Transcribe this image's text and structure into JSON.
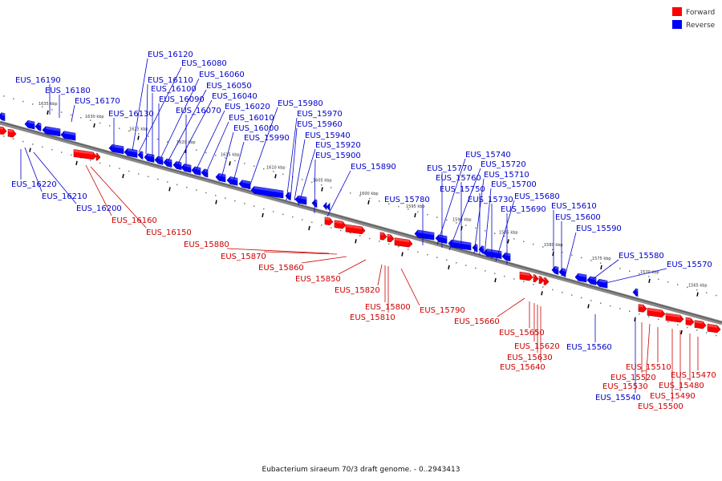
{
  "legend": {
    "forward": {
      "label": "Forward",
      "color": "#ff0000"
    },
    "reverse": {
      "label": "Reverse",
      "color": "#0000ff"
    }
  },
  "caption": "Eubacterium siraeum 70/3 draft genome. - 0..2943413",
  "ticks": {
    "kbp_labels": [
      "1635 kbp",
      "1630 kbp",
      "1625 kbp",
      "1620 kbp",
      "1615 kbp",
      "1610 kbp",
      "1605 kbp",
      "1600 kbp",
      "1595 kbp",
      "1590 kbp",
      "1585 kbp",
      "1580 kbp",
      "1575 kbp",
      "1570 kbp",
      "1565 kbp"
    ]
  },
  "genes": {
    "reverse_upper": [
      "EUS_16190",
      "EUS_16180",
      "EUS_16170",
      "EUS_16130",
      "EUS_16120",
      "EUS_16080",
      "EUS_16110",
      "EUS_16100",
      "EUS_16060",
      "EUS_16090",
      "EUS_16050",
      "EUS_16040",
      "EUS_16070",
      "EUS_16020",
      "EUS_16010",
      "EUS_16000",
      "EUS_15990",
      "EUS_15980",
      "EUS_15970",
      "EUS_15960",
      "EUS_15940",
      "EUS_15920",
      "EUS_15900",
      "EUS_15890",
      "EUS_15780",
      "EUS_15740",
      "EUS_15770",
      "EUS_15720",
      "EUS_15760",
      "EUS_15710",
      "EUS_15750",
      "EUS_15700",
      "EUS_15730",
      "EUS_15680",
      "EUS_15690",
      "EUS_15610",
      "EUS_15600",
      "EUS_15590",
      "EUS_15580",
      "EUS_15570"
    ],
    "reverse_lower": [
      "EUS_16220",
      "EUS_16210",
      "EUS_16200",
      "EUS_15560",
      "EUS_15540"
    ],
    "forward": [
      "EUS_16160",
      "EUS_16150",
      "EUS_15880",
      "EUS_15870",
      "EUS_15860",
      "EUS_15850",
      "EUS_15820",
      "EUS_15800",
      "EUS_15810",
      "EUS_15790",
      "EUS_15660",
      "EUS_15650",
      "EUS_15620",
      "EUS_15630",
      "EUS_15640",
      "EUS_15510",
      "EUS_15520",
      "EUS_15470",
      "EUS_15530",
      "EUS_15480",
      "EUS_15490",
      "EUS_15500"
    ]
  }
}
